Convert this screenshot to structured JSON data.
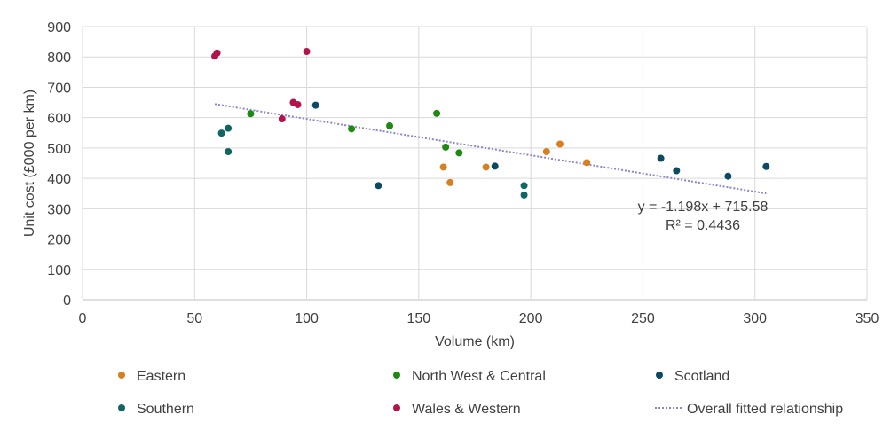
{
  "chart_data": {
    "type": "scatter",
    "title": "",
    "xlabel": "Volume (km)",
    "ylabel": "Unit cost (£000 per km)",
    "xlim": [
      0,
      350
    ],
    "ylim": [
      0,
      900
    ],
    "x_ticks": [
      0,
      50,
      100,
      150,
      200,
      250,
      300,
      350
    ],
    "y_ticks": [
      0,
      100,
      200,
      300,
      400,
      500,
      600,
      700,
      800,
      900
    ],
    "grid": true,
    "legend_position": "bottom",
    "series": [
      {
        "name": "Eastern",
        "color": "#d87f1e",
        "points": [
          [
            161,
            437
          ],
          [
            164,
            386
          ],
          [
            180,
            437
          ],
          [
            207,
            488
          ],
          [
            213,
            513
          ],
          [
            225,
            452
          ]
        ]
      },
      {
        "name": "North West & Central",
        "color": "#1e8a12",
        "points": [
          [
            75,
            613
          ],
          [
            120,
            563
          ],
          [
            137,
            573
          ],
          [
            158,
            614
          ],
          [
            162,
            503
          ],
          [
            168,
            484
          ]
        ]
      },
      {
        "name": "Scotland",
        "color": "#0c4a63",
        "points": [
          [
            104,
            641
          ],
          [
            132,
            376
          ],
          [
            184,
            440
          ],
          [
            258,
            466
          ],
          [
            265,
            425
          ],
          [
            288,
            407
          ],
          [
            305,
            439
          ]
        ]
      },
      {
        "name": "Southern",
        "color": "#0f6663",
        "points": [
          [
            62,
            549
          ],
          [
            65,
            565
          ],
          [
            65,
            488
          ],
          [
            197,
            376
          ],
          [
            197,
            345
          ]
        ]
      },
      {
        "name": "Wales & Western",
        "color": "#b3134a",
        "points": [
          [
            59,
            803
          ],
          [
            60,
            813
          ],
          [
            89,
            596
          ],
          [
            94,
            650
          ],
          [
            96,
            643
          ],
          [
            100,
            818
          ]
        ]
      }
    ],
    "trendline": {
      "name": "Overall fitted relationship",
      "color": "#8f84c7",
      "slope": -1.198,
      "intercept": 715.58,
      "x_range": [
        59,
        305
      ],
      "equation": "y = -1.198x + 715.58",
      "r2": "R² = 0.4436"
    }
  }
}
